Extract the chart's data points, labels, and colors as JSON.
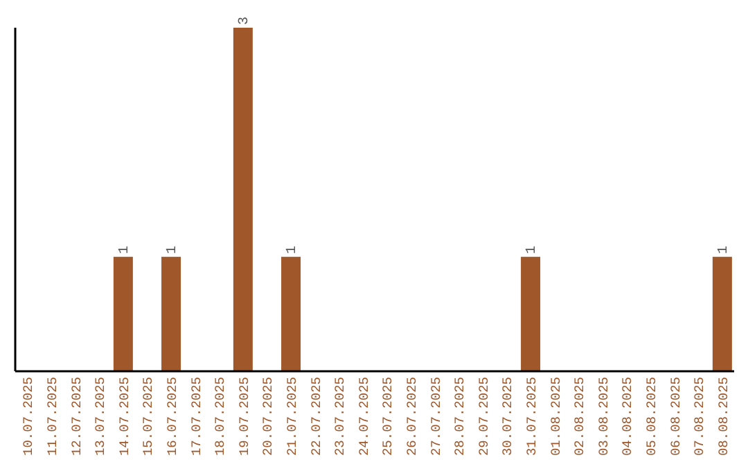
{
  "chart_data": {
    "type": "bar",
    "categories": [
      "10.07.2025",
      "11.07.2025",
      "12.07.2025",
      "13.07.2025",
      "14.07.2025",
      "15.07.2025",
      "16.07.2025",
      "17.07.2025",
      "18.07.2025",
      "19.07.2025",
      "20.07.2025",
      "21.07.2025",
      "22.07.2025",
      "23.07.2025",
      "24.07.2025",
      "25.07.2025",
      "26.07.2025",
      "27.07.2025",
      "28.07.2025",
      "29.07.2025",
      "30.07.2025",
      "31.07.2025",
      "01.08.2025",
      "02.08.2025",
      "03.08.2025",
      "04.08.2025",
      "05.08.2025",
      "06.08.2025",
      "07.08.2025",
      "08.08.2025"
    ],
    "values": [
      0,
      0,
      0,
      0,
      1,
      0,
      1,
      0,
      0,
      3,
      0,
      1,
      0,
      0,
      0,
      0,
      0,
      0,
      0,
      0,
      0,
      1,
      0,
      0,
      0,
      0,
      0,
      0,
      0,
      1
    ],
    "value_labels": [
      null,
      null,
      null,
      null,
      "1",
      null,
      "1",
      null,
      null,
      "3",
      null,
      "1",
      null,
      null,
      null,
      null,
      null,
      null,
      null,
      null,
      null,
      "1",
      null,
      null,
      null,
      null,
      null,
      null,
      null,
      "1"
    ],
    "color": "#a0572a",
    "tick_labels": "x",
    "grid": false,
    "legend": false
  }
}
